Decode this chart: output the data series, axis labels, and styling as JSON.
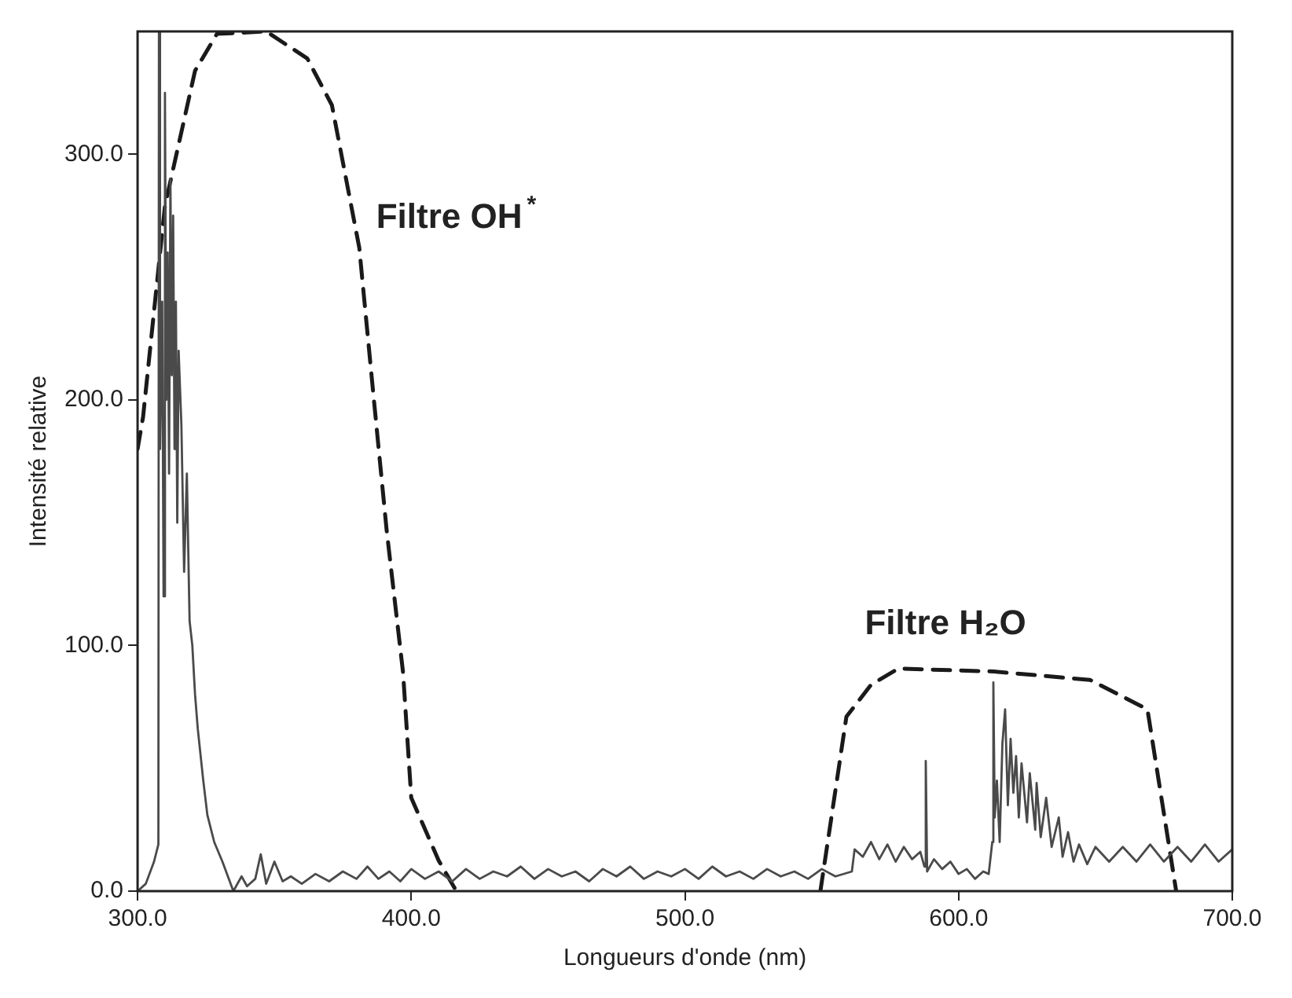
{
  "chart_data": {
    "type": "line",
    "xlabel": "Longueurs d'onde (nm)",
    "ylabel": "Intensité relative",
    "xlim": [
      300,
      700
    ],
    "ylim": [
      0,
      350
    ],
    "xticks": [
      {
        "value": 300,
        "label": "300.0"
      },
      {
        "value": 400,
        "label": "400.0"
      },
      {
        "value": 500,
        "label": "500.0"
      },
      {
        "value": 600,
        "label": "600.0"
      },
      {
        "value": 700,
        "label": "700.0"
      }
    ],
    "yticks": [
      {
        "value": 0,
        "label": "0.0"
      },
      {
        "value": 100,
        "label": "100.0"
      },
      {
        "value": 200,
        "label": "200.0"
      },
      {
        "value": 300,
        "label": "300.0"
      }
    ],
    "grid": false,
    "legend": false,
    "marker": "none",
    "series": [
      {
        "color": "#4a4a4a",
        "line_style": "solid",
        "x": [
          300,
          303,
          306,
          307.6,
          307.8,
          308.2,
          309,
          309.5,
          310,
          310.5,
          311,
          311.5,
          312,
          312.5,
          313,
          313.5,
          314,
          314.5,
          315,
          316,
          317,
          318,
          319,
          320,
          321,
          322,
          324,
          325.5,
          328,
          331,
          335,
          338,
          340,
          343,
          345,
          347,
          350,
          353,
          356,
          360,
          365,
          370,
          375,
          380,
          384,
          388,
          392,
          396,
          400,
          405,
          410,
          415,
          420,
          425,
          430,
          435,
          440,
          445,
          450,
          455,
          460,
          465,
          470,
          475,
          480,
          485,
          490,
          495,
          500,
          505,
          510,
          515,
          520,
          525,
          530,
          535,
          540,
          545,
          550,
          555,
          561,
          562,
          565,
          568,
          571,
          574,
          577,
          580,
          583,
          586,
          587.5,
          588,
          588.5,
          591,
          594,
          597,
          600,
          603,
          606,
          609,
          611,
          612.3,
          612.7,
          613.2,
          614,
          615,
          616,
          617,
          618,
          619,
          620,
          621,
          622,
          623,
          625,
          626,
          628,
          628.5,
          630,
          632,
          634,
          636.6,
          638,
          640,
          642,
          644,
          647,
          650,
          655,
          660,
          665,
          670,
          675,
          680,
          685,
          690,
          695,
          700
        ],
        "values": [
          0,
          3,
          12,
          19,
          350,
          180,
          240,
          120,
          325,
          200,
          260,
          170,
          290,
          210,
          275,
          180,
          240,
          150,
          220,
          190,
          130,
          170,
          110,
          100,
          80,
          66,
          45,
          31,
          20,
          12,
          0,
          6,
          2,
          5,
          15,
          3,
          12,
          4,
          6,
          3,
          7,
          4,
          8,
          5,
          10,
          5,
          8,
          4,
          9,
          5,
          8,
          4,
          9,
          5,
          8,
          6,
          10,
          5,
          9,
          6,
          8,
          4,
          9,
          6,
          10,
          5,
          8,
          6,
          9,
          5,
          10,
          6,
          8,
          5,
          9,
          6,
          8,
          5,
          9,
          6,
          8,
          17,
          14,
          20,
          13,
          19,
          12,
          18,
          13,
          16,
          10,
          53,
          8,
          13,
          9,
          12,
          7,
          9,
          5,
          8,
          7,
          20,
          85,
          30,
          45,
          20,
          60,
          74,
          35,
          62,
          40,
          55,
          30,
          52,
          28,
          48,
          25,
          44,
          22,
          38,
          18,
          30,
          14,
          24,
          12,
          19,
          11,
          18,
          12,
          18,
          12,
          19,
          12,
          18,
          12,
          19,
          12,
          17
        ]
      },
      {
        "name": "Filtre OH$^{*}$",
        "color": "#1a1a1a",
        "line_style": "dashed",
        "x": [
          300,
          302,
          310,
          321,
          329,
          347,
          362,
          371,
          381,
          386,
          391,
          397,
          400,
          410,
          416.5
        ],
        "values": [
          180,
          193,
          279,
          334,
          349,
          350,
          339,
          320,
          262,
          204,
          147,
          89,
          38,
          12.5,
          0
        ]
      },
      {
        "name": "Filtre H₂O",
        "color": "#1a1a1a",
        "line_style": "dashed",
        "x": [
          549.5,
          559,
          568,
          578,
          613,
          648,
          669,
          679.5
        ],
        "values": [
          0,
          71,
          84,
          90.6,
          89.4,
          86,
          74,
          0
        ]
      }
    ]
  }
}
